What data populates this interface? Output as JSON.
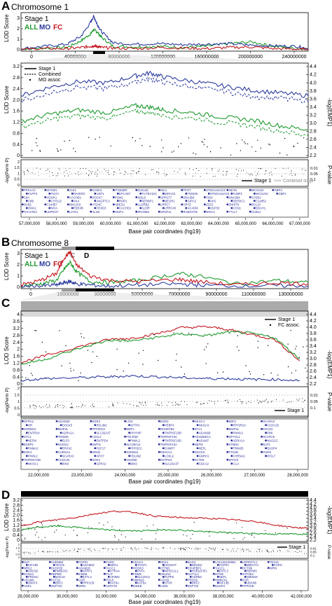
{
  "panels": {
    "A": {
      "label": "A",
      "title": "Chromosome 1",
      "overview": {
        "legend_stage": "Stage 1",
        "legend_all": "ALL",
        "legend_mo": "MO",
        "legend_fc": "FC",
        "ylabel": "LOD Score",
        "yticks": [
          "3",
          "2",
          "1",
          "0"
        ],
        "xticks": [
          "0",
          "40000000",
          "80000000",
          "120000000",
          "160000000",
          "200000000",
          "240000000"
        ]
      },
      "zoom": {
        "ylabel": "LOD Score",
        "ylabel_right": "-log(EMP1)",
        "yticks": [
          "3.2",
          "2.8",
          "2.4",
          "2.0",
          "1.6",
          "1.2",
          "0.8",
          "0.4",
          "0"
        ],
        "yticks_right": [
          "4.4",
          "4.2",
          "4.0",
          "3.8",
          "3.6",
          "3.4",
          "3.2",
          "3.0",
          "2.8",
          "2.6",
          "2.4",
          "2.2"
        ],
        "legend": [
          "Stage 1",
          "Combined",
          "MO assoc"
        ],
        "perm_ylabel": "-log(Perm P)",
        "perm_yticks": [
          "2",
          "1.5",
          "1",
          "0.5",
          "0"
        ],
        "pval_label": "P-value",
        "pval_ticks": [
          "0.01",
          "0.05",
          "0.1"
        ],
        "perm_legend": [
          "Stage 1",
          "Combined stage"
        ],
        "genes": [
          "PRKAA2",
          "PLPP3",
          "C8A",
          "C8B",
          "DAB1",
          "OMA1",
          "TACSTD2",
          "MYSM1",
          "FGGY",
          "HOOK1",
          "CYP2J2",
          "C1orf87",
          "NFIA",
          "LEPROT",
          "JAK1",
          "RAVER2",
          "CACHD1",
          "AK4",
          "DNAJC6",
          "PDE4B",
          "L1TD1",
          "KANK4",
          "USP1",
          "DOCK7",
          "ANGPTL3",
          "ATG4C",
          "FOXD3",
          "ALG6",
          "ITGB3BP",
          "EFCAB7",
          "PGM1",
          "ROR1",
          "UBE2U",
          "CACHD1",
          "SGIP1",
          "DLEU2L",
          "TCTEX1D1",
          "INSL5",
          "SERBP1",
          "IL12RB2",
          "IL23R",
          "ZRANB2",
          "WLS",
          "DIRAS3",
          "GPR177",
          "NEGR1",
          "LRRC7",
          "LRRC40",
          "SRSF11",
          "FPGT",
          "TNNI3K",
          "DNAJB4",
          "GIPC2",
          "CRYZ",
          "ACADM",
          "RABGGTB",
          "ST6GALNAC3",
          "ST6GALNAC5",
          "PIGK",
          "AK5",
          "ZZZ3",
          "USP33",
          "MIGA1",
          "NEXN",
          "FUBP1",
          "DNAJB4",
          "DEPDC1",
          "ZNHIT6",
          "CCN1",
          "TTLL7",
          "MCOLN2",
          "MCOLN3",
          "SYDE2",
          "C1orf52",
          "BCL10",
          "DDAH1",
          "CCBL2",
          "GBP3",
          "GBP1"
        ],
        "xlabel": "Base pair coordinates (hg19)",
        "xticks": [
          "57,000,000",
          "58,000,000",
          "59,000,000",
          "60,000,000",
          "61,000,000",
          "62,000,000",
          "63,000,000",
          "64,000,000",
          "65,000,000",
          "66,000,000",
          "67,000,000"
        ]
      }
    },
    "B": {
      "label": "B",
      "title": "Chromosome 8",
      "overview": {
        "legend_stage": "Stage 1",
        "legend_all": "ALL",
        "legend_mo": "MO",
        "legend_fc": "FC",
        "ylabel": "LOD Score",
        "yticks": [
          "3",
          "2",
          "1",
          "0"
        ],
        "xticks": [
          "0",
          "10000000",
          "30000000",
          "50000000",
          "70000000",
          "90000000",
          "110000000",
          "130000000"
        ],
        "region_c": "C",
        "region_d": "D"
      }
    },
    "C": {
      "label": "C",
      "ylabel": "LOD Score",
      "ylabel_right": "-log(EMP1)",
      "yticks": [
        "4",
        "3.6",
        "3.2",
        "2.8",
        "2.4",
        "2",
        "1.6",
        "1.2",
        "0.8",
        "0.4",
        "0"
      ],
      "yticks_right": [
        "4.4",
        "4.2",
        "4.0",
        "3.8",
        "3.6",
        "3.4",
        "3.2",
        "3.0",
        "2.8",
        "2.6",
        "2.4",
        "2.2"
      ],
      "legend": [
        "Stage 1",
        "FC assoc."
      ],
      "perm_ylabel": "-log(Perm P)",
      "perm_yticks": [
        "2",
        "1.5",
        "1",
        "0.5",
        "0"
      ],
      "pval_label": "P-value",
      "pval_ticks": [
        "0.01",
        "0.05",
        "0.1"
      ],
      "perm_legend": [
        "Stage 1"
      ],
      "genes": [
        "GFRA2",
        "HR",
        "SORBS3",
        "ENTPD4",
        "STC1",
        "NEFM",
        "ESRP2",
        "PNMA2",
        "DOK2",
        "PIWIL2",
        "TNFRSF10B",
        "NKX3-1",
        "ADAM28",
        "DOCK5",
        "BNIP3L",
        "ADRA1A",
        "TRIM35",
        "ELP3",
        "NUGGC",
        "EPHX2",
        "CHRNA2",
        "SCARA3",
        "CCDC25",
        "BIN3",
        "EGR3",
        "PDLIM2",
        "PPP2R2A",
        "SLC25A37",
        "LOXL2",
        "ENTPD4",
        "DMTN",
        "FGF17",
        "NPM2",
        "XPO7",
        "DOK2",
        "GFRA2",
        "LGI3",
        "SFTPC",
        "BMP1",
        "PHYHIP",
        "POLR3D",
        "PIWIL2",
        "SLC39A14",
        "PPP3CC",
        "SORBS3",
        "PDLIM2",
        "C8orf58",
        "BIN3",
        "EGR3",
        "PEBP4",
        "RHOBTB2",
        "TNFRSF10B",
        "TNFRSF10C",
        "TNFRSF10D",
        "TNFRSF10A",
        "CHMP7",
        "R3HCC1",
        "LOXL2",
        "ENTPD4",
        "SLC25A37",
        "NKX3-1",
        "NKX2-6",
        "STC1",
        "ADAM28",
        "ADAMDEC1",
        "ADAM7",
        "NEFM",
        "NEFL",
        "DOCK5",
        "GNRH1",
        "KCTD9",
        "CDCA2",
        "EBF2",
        "PPP2R2A",
        "BNIP3L",
        "PNMA2",
        "DPYSL2",
        "ADRA1A",
        "STMN4",
        "TRIM35",
        "PTK2B",
        "CHRNA2",
        "EPHX2",
        "CLU",
        "SCARA3",
        "CCDC25",
        "ESCO2",
        "PBK",
        "SCARA5",
        "NUGGC",
        "ELP3",
        "DUSP4",
        "PURG",
        "IPOL7"
      ],
      "xlabel": "Base pair coordinates (hg19)",
      "xticks": [
        "22,000,000",
        "23,000,000",
        "24,000,000",
        "25,000,000",
        "26,000,000",
        "27,000,000",
        "28,000,000"
      ]
    },
    "D": {
      "label": "D",
      "ylabel": "LOD Score",
      "ylabel_right": "-log(EMP1)",
      "yticks": [
        "3.2",
        "2.8",
        "2.4",
        "2.0",
        "1.6",
        "1.2",
        "0.8",
        "0.4",
        "0"
      ],
      "yticks_right": [
        "4.4",
        "4.2",
        "4.0",
        "3.8",
        "3.6",
        "3.4",
        "3.2",
        "3.0",
        "2.8",
        "2.6",
        "2.4",
        "2.2"
      ],
      "perm_ylabel": "-log(Perm P)",
      "perm_yticks": [
        "2",
        "1.5",
        "1",
        "0.5",
        "0"
      ],
      "pval_label": "P-value",
      "pval_ticks": [
        "0.01",
        "0.05",
        "0.1"
      ],
      "perm_legend": [
        "Stage 1"
      ],
      "genes": [
        "SLP",
        "KIF13B",
        "NRG1",
        "UNC5D",
        "KCNU1",
        "PROSC",
        "ADAM9",
        "ZMAT4",
        "ANK1",
        "CHRNB3",
        "TEX15",
        "DUSP26",
        "HMBOX1",
        "RBPMS",
        "MAK16",
        "FUT10",
        "BRF2",
        "ZNF703",
        "FGFR1",
        "ADAM32",
        "ADAM18",
        "SFRP1",
        "IKBKB",
        "EXTL3",
        "GSR",
        "PPP2CB",
        "WRN",
        "PURG",
        "NRG1",
        "TACC1",
        "HTRA4",
        "PLAT",
        "AP3M2",
        "POLB",
        "KAT6A",
        "AGPAT6",
        "VDAC3",
        "THAP1",
        "HOOK3",
        "FNTA",
        "POMK",
        "SLC20A2",
        "SMIM19",
        "KAT6A",
        "IKBKB",
        "DKK4",
        "HGSNAT",
        "LETM2",
        "WHSC1L1",
        "ERLIN2",
        "PLPP5",
        "ASH2L",
        "STAR",
        "LSM1",
        "BAG4",
        "DDHD2",
        "EIF4EBP1",
        "RAB11FIP1",
        "GOT1L1",
        "ADRB3",
        "PROSC",
        "BRF2",
        "ZNF703",
        "LOC100130964",
        "FGFR1",
        "TACC1",
        "EXTL3",
        "INTS9",
        "NEFL",
        "HMBOX1",
        "KIF13B",
        "DUSP4",
        "LEPROTL1",
        "MBOAT4",
        "DCTN6",
        "RBPMS",
        "GTF2E2",
        "SMIM18",
        "GSR",
        "UBXN8",
        "PPP2CB",
        "TEX15",
        "PURG",
        "WRN"
      ],
      "xlabel": "Base pair coordinates (hg19)",
      "xticks": [
        "28,000,000",
        "30,000,000",
        "32,000,000",
        "34,000,000",
        "36,000,000",
        "38,000,000",
        "40,000,000",
        "42,000,000"
      ]
    }
  },
  "colors": {
    "all": "#1e9a2e",
    "mo": "#2b3a9c",
    "fc": "#c2161e",
    "gene": "#2b2f9a",
    "permDots": "#000000",
    "combined": "#888888"
  },
  "chart_data": [
    {
      "id": "A-overview",
      "type": "line",
      "xlim": [
        0,
        249000000
      ],
      "ylim": [
        0,
        3.2
      ],
      "series": [
        {
          "name": "ALL",
          "x": [
            0,
            20000000,
            40000000,
            52000000,
            60000000,
            63000000,
            66000000,
            70000000,
            80000000,
            100000000,
            120000000,
            140000000,
            160000000,
            180000000,
            200000000,
            220000000,
            240000000,
            249000000
          ],
          "y": [
            0.05,
            0.15,
            0.2,
            0.8,
            1.4,
            1.8,
            1.6,
            1.1,
            0.3,
            0.25,
            0.3,
            0.2,
            0.3,
            0.55,
            0.7,
            0.3,
            0.1,
            0.0
          ]
        },
        {
          "name": "MO",
          "x": [
            0,
            20000000,
            40000000,
            52000000,
            60000000,
            63000000,
            66000000,
            70000000,
            80000000,
            100000000,
            120000000,
            140000000,
            160000000,
            180000000,
            200000000,
            220000000,
            240000000,
            249000000
          ],
          "y": [
            0.1,
            0.3,
            0.5,
            1.2,
            2.4,
            3.0,
            2.3,
            1.6,
            0.6,
            0.5,
            0.55,
            0.45,
            0.5,
            0.55,
            0.4,
            0.35,
            0.3,
            0.1
          ]
        },
        {
          "name": "FC",
          "x": [
            0,
            20000000,
            40000000,
            52000000,
            60000000,
            63000000,
            66000000,
            70000000,
            80000000,
            100000000,
            120000000,
            140000000,
            160000000,
            180000000,
            200000000,
            220000000,
            240000000,
            249000000
          ],
          "y": [
            0.02,
            0.1,
            0.1,
            0.2,
            0.3,
            0.35,
            0.3,
            0.2,
            0.15,
            0.1,
            0.2,
            0.15,
            0.1,
            0.2,
            0.25,
            0.1,
            0.05,
            0.0
          ]
        }
      ]
    },
    {
      "id": "A-zoom",
      "type": "line",
      "xlim": [
        57000000,
        67000000
      ],
      "ylim": [
        0,
        3.2
      ],
      "series": [
        {
          "name": "MO",
          "x": [
            57000000,
            58000000,
            59000000,
            60000000,
            61000000,
            61500000,
            62000000,
            63000000,
            64000000,
            65000000,
            66000000,
            67000000
          ],
          "y": [
            2.1,
            2.4,
            2.6,
            2.55,
            2.8,
            2.9,
            2.75,
            2.6,
            2.45,
            2.3,
            2.2,
            2.1
          ]
        },
        {
          "name": "ALL",
          "x": [
            57000000,
            58000000,
            59000000,
            60000000,
            61000000,
            61500000,
            62000000,
            63000000,
            64000000,
            65000000,
            66000000,
            67000000
          ],
          "y": [
            1.2,
            1.45,
            1.6,
            1.5,
            1.75,
            1.7,
            1.6,
            1.5,
            1.35,
            1.25,
            1.05,
            0.9
          ]
        }
      ]
    },
    {
      "id": "B-overview",
      "type": "line",
      "xlim": [
        0,
        146000000
      ],
      "ylim": [
        0,
        3.2
      ],
      "series": [
        {
          "name": "ALL",
          "x": [
            0,
            10000000,
            18000000,
            22000000,
            25000000,
            28000000,
            35000000,
            45000000,
            60000000,
            80000000,
            90000000,
            110000000,
            130000000,
            146000000
          ],
          "y": [
            0.1,
            0.3,
            0.6,
            1.6,
            2.2,
            1.4,
            0.5,
            0.4,
            0.6,
            1.2,
            1.0,
            0.3,
            0.6,
            0.4
          ]
        },
        {
          "name": "MO",
          "x": [
            0,
            10000000,
            18000000,
            22000000,
            25000000,
            28000000,
            35000000,
            45000000,
            60000000,
            80000000,
            90000000,
            110000000,
            130000000,
            146000000
          ],
          "y": [
            0.05,
            0.1,
            0.2,
            0.4,
            0.5,
            0.3,
            0.2,
            0.1,
            0.2,
            0.3,
            0.2,
            0.1,
            0.15,
            0.1
          ]
        },
        {
          "name": "FC",
          "x": [
            0,
            10000000,
            18000000,
            22000000,
            25000000,
            28000000,
            35000000,
            45000000,
            60000000,
            80000000,
            90000000,
            110000000,
            130000000,
            146000000
          ],
          "y": [
            0.2,
            0.6,
            1.2,
            2.6,
            3.1,
            2.0,
            1.0,
            0.6,
            0.5,
            0.7,
            0.5,
            0.2,
            0.4,
            0.3
          ]
        }
      ]
    },
    {
      "id": "C-zoom",
      "type": "line",
      "xlim": [
        21400000,
        28200000
      ],
      "ylim": [
        0,
        4
      ],
      "series": [
        {
          "name": "FC",
          "x": [
            21400000,
            22000000,
            22800000,
            23500000,
            24000000,
            24600000,
            25200000,
            25800000,
            26300000,
            26800000,
            27400000,
            28000000
          ],
          "y": [
            1.2,
            1.6,
            2.1,
            2.5,
            2.55,
            2.8,
            3.15,
            3.2,
            3.05,
            2.8,
            2.5,
            1.3
          ]
        },
        {
          "name": "ALL",
          "x": [
            21400000,
            22000000,
            22800000,
            23500000,
            24000000,
            24600000,
            25200000,
            25800000,
            26300000,
            26800000,
            27400000,
            28000000
          ],
          "y": [
            1.1,
            1.4,
            2.0,
            2.45,
            2.4,
            2.6,
            2.8,
            2.7,
            2.9,
            2.85,
            2.6,
            1.4
          ]
        },
        {
          "name": "MO",
          "x": [
            21400000,
            22000000,
            22800000,
            23500000,
            24000000,
            24600000,
            25200000,
            25800000,
            26300000,
            26800000,
            27400000,
            28000000
          ],
          "y": [
            0.2,
            0.3,
            0.35,
            0.4,
            0.45,
            0.4,
            0.35,
            0.3,
            0.3,
            0.25,
            0.25,
            0.2
          ]
        }
      ]
    },
    {
      "id": "D-zoom",
      "type": "line",
      "xlim": [
        27700000,
        42300000
      ],
      "ylim": [
        0,
        3.4
      ],
      "series": [
        {
          "name": "FC",
          "x": [
            27700000,
            28500000,
            29500000,
            30500000,
            31500000,
            32500000,
            33500000,
            34500000,
            35500000,
            36500000,
            37500000,
            38500000,
            39500000,
            40500000,
            41500000,
            42300000
          ],
          "y": [
            1.2,
            1.5,
            1.7,
            1.9,
            2.2,
            2.4,
            2.3,
            2.0,
            1.9,
            1.85,
            1.8,
            1.7,
            1.6,
            1.3,
            1.1,
            1.0
          ]
        },
        {
          "name": "ALL",
          "x": [
            27700000,
            28500000,
            29500000,
            30500000,
            31500000,
            32500000,
            33500000,
            34500000,
            35500000,
            36500000,
            37500000,
            38500000,
            39500000,
            40500000,
            41500000,
            42300000
          ],
          "y": [
            0.9,
            1.1,
            1.2,
            1.1,
            0.95,
            0.85,
            0.8,
            0.85,
            0.9,
            0.8,
            0.7,
            0.65,
            0.6,
            0.55,
            0.55,
            0.55
          ]
        }
      ]
    }
  ]
}
